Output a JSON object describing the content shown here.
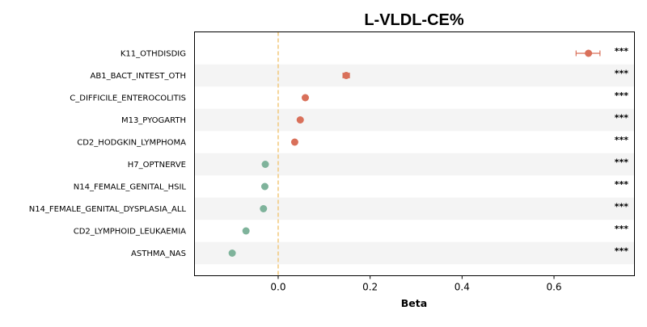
{
  "chart_data": {
    "type": "scatter",
    "title": "L-VLDL-CE%",
    "xlabel": "Beta",
    "ylabel": "",
    "xlim": [
      -0.182,
      0.775
    ],
    "xticks": [
      {
        "value": 0.0,
        "label": "0.0"
      },
      {
        "value": 0.2,
        "label": "0.2"
      },
      {
        "value": 0.4,
        "label": "0.4"
      },
      {
        "value": 0.6,
        "label": "0.6"
      }
    ],
    "reference_line": {
      "value": 0.0,
      "color": "#f2c879",
      "style": "dashed"
    },
    "colors": {
      "positive": "#d9705a",
      "negative": "#7fb39b",
      "band": "#f4f4f4"
    },
    "points": [
      {
        "label": "K11_OTHDISDIG",
        "beta": 0.675,
        "ci_low": 0.648,
        "ci_high": 0.7,
        "significance": "***",
        "direction": "positive"
      },
      {
        "label": "AB1_BACT_INTEST_OTH",
        "beta": 0.148,
        "ci_low": 0.141,
        "ci_high": 0.155,
        "significance": "***",
        "direction": "positive"
      },
      {
        "label": "C_DIFFICILE_ENTEROCOLITIS",
        "beta": 0.059,
        "ci_low": 0.055,
        "ci_high": 0.063,
        "significance": "***",
        "direction": "positive"
      },
      {
        "label": "M13_PYOGARTH",
        "beta": 0.048,
        "ci_low": 0.045,
        "ci_high": 0.051,
        "significance": "***",
        "direction": "positive"
      },
      {
        "label": "CD2_HODGKIN_LYMPHOMA",
        "beta": 0.036,
        "ci_low": 0.033,
        "ci_high": 0.039,
        "significance": "***",
        "direction": "positive"
      },
      {
        "label": "H7_OPTNERVE",
        "beta": -0.028,
        "ci_low": -0.031,
        "ci_high": -0.025,
        "significance": "***",
        "direction": "negative"
      },
      {
        "label": "N14_FEMALE_GENITAL_HSIL",
        "beta": -0.029,
        "ci_low": -0.032,
        "ci_high": -0.026,
        "significance": "***",
        "direction": "negative"
      },
      {
        "label": "N14_FEMALE_GENITAL_DYSPLASIA_ALL",
        "beta": -0.032,
        "ci_low": -0.035,
        "ci_high": -0.029,
        "significance": "***",
        "direction": "negative"
      },
      {
        "label": "CD2_LYMPHOID_LEUKAEMIA",
        "beta": -0.07,
        "ci_low": -0.073,
        "ci_high": -0.067,
        "significance": "***",
        "direction": "negative"
      },
      {
        "label": "ASTHMA_NAS",
        "beta": -0.1,
        "ci_low": -0.103,
        "ci_high": -0.097,
        "significance": "***",
        "direction": "negative"
      }
    ]
  }
}
